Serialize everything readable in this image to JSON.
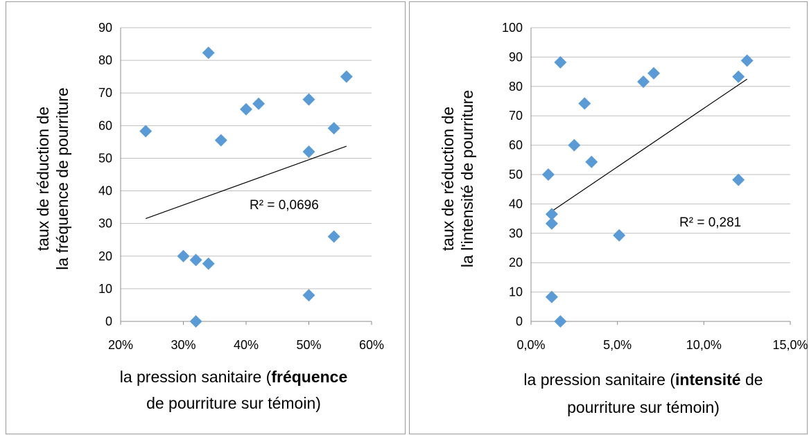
{
  "chart_data": [
    {
      "type": "scatter",
      "title": "",
      "ylabel_lines": [
        "taux de réduction de",
        "la fréquence de  pourriture"
      ],
      "xlabel_lines": [
        [
          {
            "text": "la pression sanitaire (",
            "bold": false
          },
          {
            "text": "fréquence",
            "bold": true
          }
        ],
        [
          {
            "text": "de pourriture sur témoin)",
            "bold": false
          }
        ]
      ],
      "xlim": [
        0.2,
        0.6
      ],
      "ylim": [
        0,
        90
      ],
      "xticks": [
        0.2,
        0.3,
        0.4,
        0.5,
        0.6
      ],
      "xtick_labels": [
        "20%",
        "30%",
        "40%",
        "50%",
        "60%"
      ],
      "yticks": [
        0,
        10,
        20,
        30,
        40,
        50,
        60,
        70,
        80,
        90
      ],
      "ytick_labels": [
        "0",
        "10",
        "20",
        "30",
        "40",
        "50",
        "60",
        "70",
        "80",
        "90"
      ],
      "grid": "horizontal",
      "marker_color": "#5B9BD5",
      "trendline_color": "#000000",
      "x": [
        0.24,
        0.3,
        0.32,
        0.32,
        0.34,
        0.34,
        0.36,
        0.4,
        0.42,
        0.5,
        0.5,
        0.5,
        0.54,
        0.54,
        0.56
      ],
      "y": [
        58.3,
        20,
        18.8,
        0,
        17.7,
        82.3,
        55.5,
        65,
        66.7,
        68,
        52,
        8,
        59.2,
        26,
        75
      ],
      "trendline": {
        "x": [
          0.24,
          0.56
        ],
        "y": [
          31.5,
          53.7
        ]
      },
      "annotation": "R² = 0,0696"
    },
    {
      "type": "scatter",
      "title": "",
      "ylabel_lines": [
        "taux de réduction de",
        "la l'intensité de  pourriture"
      ],
      "xlabel_lines": [
        [
          {
            "text": "la pression sanitaire (",
            "bold": false
          },
          {
            "text": "intensité",
            "bold": true
          },
          {
            "text": " de",
            "bold": false
          }
        ],
        [
          {
            "text": "pourriture sur témoin)",
            "bold": false
          }
        ]
      ],
      "xlim": [
        0,
        0.15
      ],
      "ylim": [
        0,
        100
      ],
      "xticks": [
        0,
        0.05,
        0.1,
        0.15
      ],
      "xtick_labels": [
        "0,0%",
        "5,0%",
        "10,0%",
        "15,0%"
      ],
      "yticks": [
        0,
        10,
        20,
        30,
        40,
        50,
        60,
        70,
        80,
        90,
        100
      ],
      "ytick_labels": [
        "0",
        "10",
        "20",
        "30",
        "40",
        "50",
        "60",
        "70",
        "80",
        "90",
        "100"
      ],
      "grid": "horizontal",
      "marker_color": "#5B9BD5",
      "trendline_color": "#000000",
      "x": [
        0.01,
        0.012,
        0.012,
        0.012,
        0.017,
        0.017,
        0.025,
        0.031,
        0.035,
        0.051,
        0.065,
        0.071,
        0.12,
        0.12,
        0.125
      ],
      "y": [
        50,
        36.5,
        33.3,
        8.3,
        88.2,
        0,
        60,
        74.2,
        54.3,
        29.3,
        81.6,
        84.5,
        83.3,
        48.2,
        88.8
      ],
      "trendline": {
        "x": [
          0.012,
          0.125
        ],
        "y": [
          37.5,
          82.5
        ]
      },
      "annotation": "R² = 0,281"
    }
  ]
}
